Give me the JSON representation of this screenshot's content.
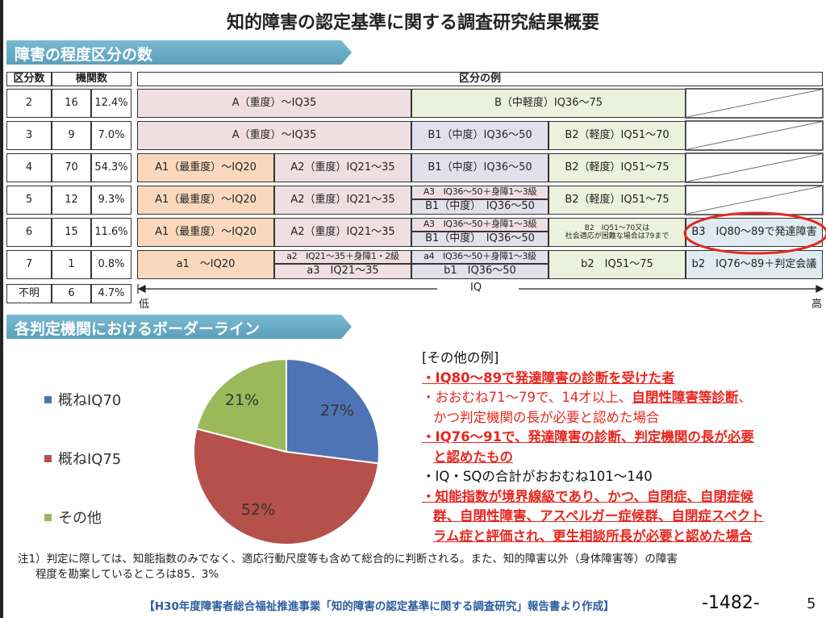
{
  "title": "知的障害の認定基準に関する調査研究結果概要",
  "section1": "障害の程度区分の数",
  "section2": "各判定機関におけるボーダーライン",
  "left_table": {
    "headers": [
      "区分数",
      "機関数"
    ],
    "rows": [
      [
        "2",
        "16",
        "12.4%"
      ],
      [
        "3",
        "9",
        "7.0%"
      ],
      [
        "4",
        "70",
        "54.3%"
      ],
      [
        "5",
        "12",
        "9.3%"
      ],
      [
        "6",
        "15",
        "11.6%"
      ],
      [
        "7",
        "1",
        "0.8%"
      ],
      [
        "不明",
        "6",
        "4.7%"
      ]
    ]
  },
  "right_table": {
    "header": "区分の例",
    "r2": [
      "A（重度）～IQ35",
      "B（中軽度）IQ36～75"
    ],
    "r3": [
      "A（重度）～IQ35",
      "B1（中度）IQ36～50",
      "B2（軽度）IQ51～70"
    ],
    "r4": [
      "A1（最重度）～IQ20",
      "A2（重度）IQ21～35",
      "B1（中度）IQ36～50",
      "B2（軽度）IQ51～75"
    ],
    "r5": [
      "A1（最重度）～IQ20",
      "A2（重度）IQ21～35",
      "A3　IQ36～50＋身障1～3級",
      "B1（中度）　IQ36～50",
      "B2（軽度）IQ51～75"
    ],
    "r6": [
      "A1（最重度）～IQ20",
      "A2（重度）IQ21～35",
      "A3　IQ36～50＋身障1～3級",
      "B1（中度）　IQ36～50",
      "B2　IQ51～70又は",
      "社会適応が困難な場合は79まで",
      "B3　IQ80～89で発達障害"
    ],
    "r7": [
      "a1　～IQ20",
      "a2　IQ21～35＋身障1・2級",
      "a3　IQ21～35",
      "a4　IQ36～50＋身障1～3級",
      "b1　IQ36～50",
      "b2　IQ51～75",
      "b2　IQ76～89＋判定会議"
    ],
    "axis": {
      "label": "IQ",
      "low": "低",
      "high": "高"
    }
  },
  "chart_data": {
    "type": "pie",
    "categories": [
      "概ねIQ70",
      "概ねIQ75",
      "その他"
    ],
    "values": [
      27,
      52,
      21
    ],
    "labels": [
      "27%",
      "52%",
      "21%"
    ],
    "colors": [
      "#4f74b5",
      "#b5504b",
      "#9bb95b"
    ],
    "legend": "left"
  },
  "other": {
    "heading": "[その他の例]",
    "lines": [
      "・IQ80～89で発達障害の診断を受けた者",
      "・おおむね71～79で、14才以上、",
      "自閉性障害等診断",
      "、",
      "かつ判定機関の長が必要と認めた場合",
      "・IQ76～91で、発達障害の診断、判定機関の長が必要",
      "と認めたもの",
      "・IQ・SQの合計がおおむね101～140",
      "・知能指数が境界線級であり、かつ、自閉症、自閉症候",
      "群、自閉性障害、アスペルガー症候群、自閉症スペクト",
      "ラム症と評価され、更生相談所長が必要と認めた場合"
    ]
  },
  "note": [
    "注1）判定に際しては、知能指数のみでなく、適応行動尺度等も含めて総合的に判断される。また、知的障害以外（身体障害等）の障害",
    "程度を勘案しているところは85．3%"
  ],
  "source": "【H30年度障害者総合福祉推進事業「知的障害の認定基準に関する調査研究」報告書より作成】",
  "page_stamp": "-1482-",
  "page_number": "5"
}
